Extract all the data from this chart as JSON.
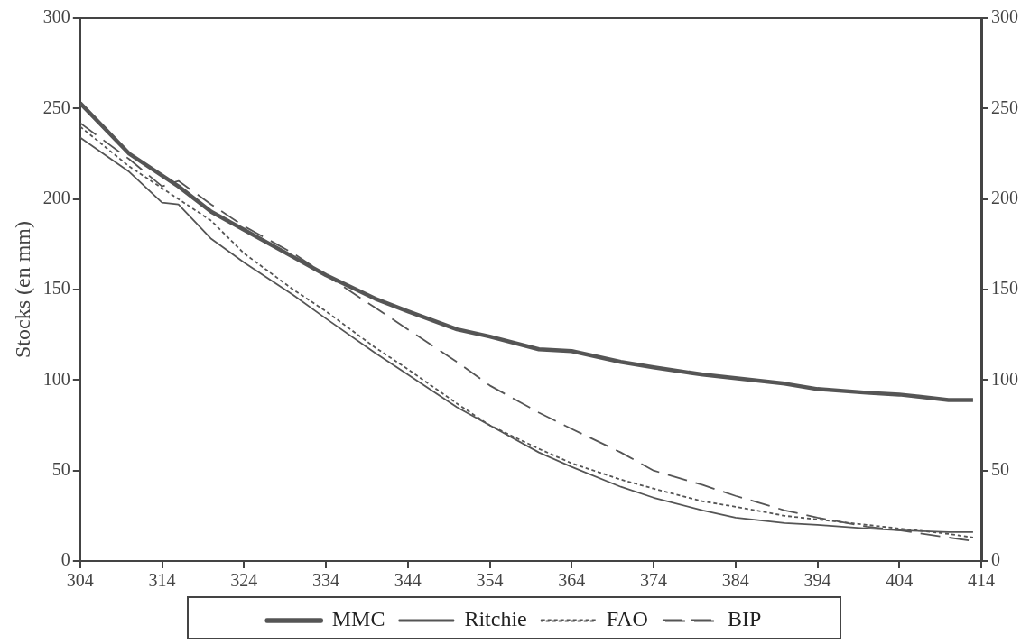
{
  "chart_data": {
    "type": "line",
    "ylabel": "Stocks (en mm)",
    "x": [
      304,
      310,
      314,
      316,
      320,
      324,
      330,
      334,
      340,
      344,
      350,
      354,
      360,
      364,
      370,
      374,
      380,
      384,
      390,
      394,
      400,
      404,
      410,
      413
    ],
    "series": [
      {
        "name": "MMC",
        "color": "#555555",
        "line_style": "solid",
        "values": [
          253,
          225,
          213,
          207,
          193,
          183,
          168,
          158,
          145,
          138,
          128,
          124,
          117,
          116,
          110,
          107,
          103,
          101,
          98,
          95,
          93,
          92,
          89,
          89
        ]
      },
      {
        "name": "Ritchie",
        "color": "#555555",
        "line_style": "solid",
        "values": [
          234,
          215,
          198,
          197,
          178,
          165,
          147,
          134,
          115,
          103,
          85,
          75,
          60,
          52,
          41,
          35,
          28,
          24,
          21,
          20,
          18,
          17,
          16,
          16
        ]
      },
      {
        "name": "FAO",
        "color": "#555555",
        "line_style": "dotted",
        "values": [
          240,
          218,
          206,
          200,
          188,
          170,
          150,
          138,
          118,
          106,
          87,
          75,
          62,
          54,
          45,
          40,
          33,
          30,
          25,
          23,
          20,
          18,
          15,
          13
        ]
      },
      {
        "name": "BIP",
        "color": "#555555",
        "line_style": "dashed",
        "values": [
          242,
          222,
          207,
          210,
          197,
          185,
          170,
          158,
          140,
          128,
          110,
          97,
          82,
          73,
          60,
          50,
          42,
          36,
          28,
          24,
          19,
          17,
          13,
          11
        ]
      }
    ],
    "xlim": [
      304,
      414
    ],
    "xticks": [
      304,
      314,
      324,
      334,
      344,
      354,
      364,
      374,
      384,
      394,
      404,
      414
    ],
    "ylim": [
      0,
      300
    ],
    "yticks": [
      0,
      50,
      100,
      150,
      200,
      250,
      300
    ],
    "y2lim": [
      0,
      300
    ],
    "y2ticks": [
      0,
      50,
      100,
      150,
      200,
      250,
      300
    ],
    "grid": false,
    "legend": "bottom",
    "marker": "none"
  }
}
